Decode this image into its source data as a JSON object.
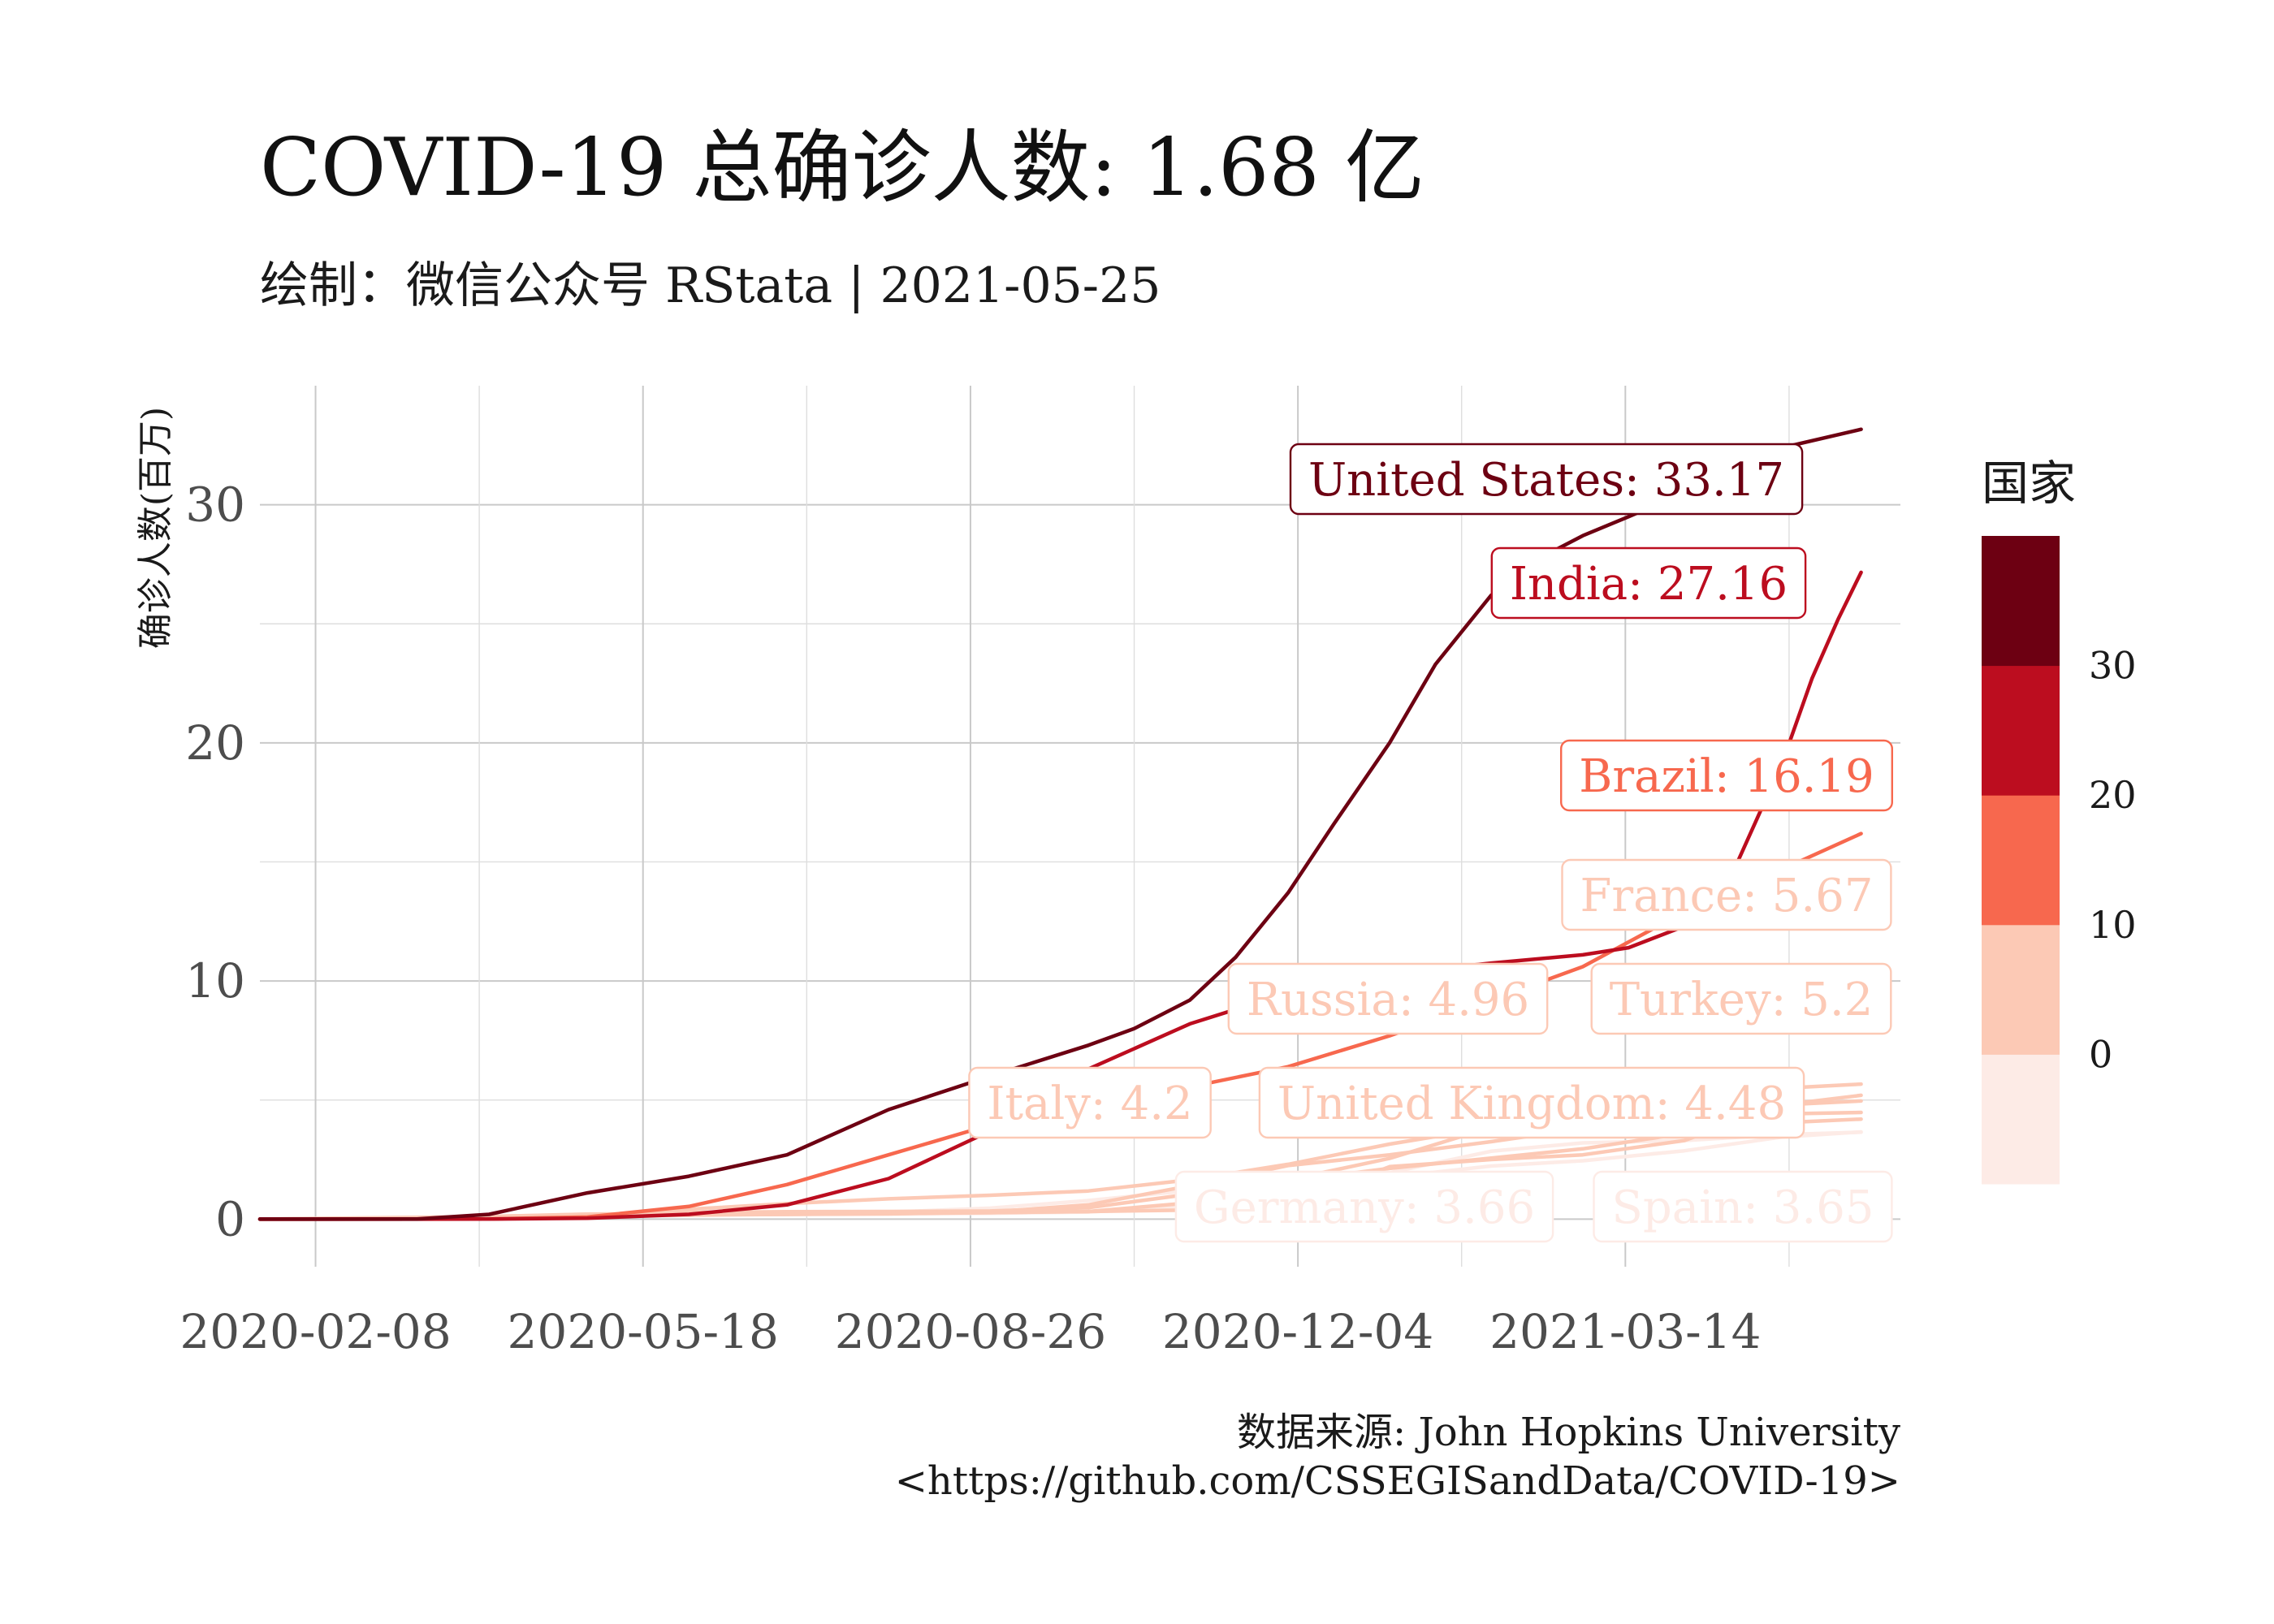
{
  "chart_data": {
    "type": "line",
    "title": "COVID-19 总确诊人数: 1.68 亿",
    "subtitle": "绘制：微信公众号 RStata | 2021-05-25",
    "xlabel": "",
    "ylabel": "确诊人数(百万)",
    "caption_lines": [
      "数据来源: John Hopkins University",
      "<https://github.com/CSSEGISandData/COVID-19>"
    ],
    "xlim": [
      "2020-01-22",
      "2021-06-06"
    ],
    "ylim": [
      -2,
      35
    ],
    "x_ticks": [
      "2020-02-08",
      "2020-05-18",
      "2020-08-26",
      "2020-12-04",
      "2021-03-14"
    ],
    "y_ticks": [
      0,
      10,
      20,
      30
    ],
    "grid": true,
    "legend": {
      "title": "国家",
      "position": "right",
      "ticks": [
        0,
        10,
        20,
        30
      ],
      "colors": [
        "#fdebe6",
        "#fcc9b5",
        "#f7684e",
        "#bc0d1f",
        "#6d0012"
      ]
    },
    "series": [
      {
        "name": "United States",
        "label": "United States: 33.17",
        "color": "#6d0012",
        "points": [
          [
            "2020-01-22",
            0
          ],
          [
            "2020-03-10",
            0.001
          ],
          [
            "2020-04-01",
            0.2
          ],
          [
            "2020-05-01",
            1.1
          ],
          [
            "2020-06-01",
            1.8
          ],
          [
            "2020-07-01",
            2.7
          ],
          [
            "2020-08-01",
            4.6
          ],
          [
            "2020-09-01",
            6.0
          ],
          [
            "2020-10-01",
            7.3
          ],
          [
            "2020-10-15",
            8.0
          ],
          [
            "2020-11-01",
            9.2
          ],
          [
            "2020-11-15",
            11.0
          ],
          [
            "2020-12-01",
            13.7
          ],
          [
            "2020-12-15",
            16.6
          ],
          [
            "2021-01-01",
            20.0
          ],
          [
            "2021-01-15",
            23.3
          ],
          [
            "2021-02-01",
            26.2
          ],
          [
            "2021-02-15",
            27.7
          ],
          [
            "2021-03-01",
            28.7
          ],
          [
            "2021-03-15",
            29.5
          ],
          [
            "2021-04-01",
            30.5
          ],
          [
            "2021-04-15",
            31.3
          ],
          [
            "2021-05-01",
            32.4
          ],
          [
            "2021-05-25",
            33.17
          ]
        ]
      },
      {
        "name": "India",
        "label": "India: 27.16",
        "color": "#bc0d1f",
        "points": [
          [
            "2020-01-22",
            0
          ],
          [
            "2020-04-01",
            0.002
          ],
          [
            "2020-05-01",
            0.035
          ],
          [
            "2020-06-01",
            0.2
          ],
          [
            "2020-07-01",
            0.6
          ],
          [
            "2020-08-01",
            1.7
          ],
          [
            "2020-09-01",
            3.7
          ],
          [
            "2020-10-01",
            6.3
          ],
          [
            "2020-11-01",
            8.2
          ],
          [
            "2020-12-01",
            9.5
          ],
          [
            "2021-01-01",
            10.3
          ],
          [
            "2021-02-01",
            10.75
          ],
          [
            "2021-03-01",
            11.1
          ],
          [
            "2021-03-15",
            11.4
          ],
          [
            "2021-04-01",
            12.3
          ],
          [
            "2021-04-15",
            14.3
          ],
          [
            "2021-05-01",
            19.2
          ],
          [
            "2021-05-10",
            22.7
          ],
          [
            "2021-05-18",
            25.2
          ],
          [
            "2021-05-25",
            27.16
          ]
        ]
      },
      {
        "name": "Brazil",
        "label": "Brazil: 16.19",
        "color": "#f7684e",
        "points": [
          [
            "2020-01-22",
            0
          ],
          [
            "2020-04-01",
            0.006
          ],
          [
            "2020-05-01",
            0.09
          ],
          [
            "2020-06-01",
            0.53
          ],
          [
            "2020-07-01",
            1.45
          ],
          [
            "2020-08-01",
            2.7
          ],
          [
            "2020-09-01",
            3.95
          ],
          [
            "2020-10-01",
            4.8
          ],
          [
            "2020-11-01",
            5.55
          ],
          [
            "2020-12-01",
            6.4
          ],
          [
            "2021-01-01",
            7.7
          ],
          [
            "2021-02-01",
            9.2
          ],
          [
            "2021-03-01",
            10.6
          ],
          [
            "2021-04-01",
            12.9
          ],
          [
            "2021-05-01",
            14.7
          ],
          [
            "2021-05-25",
            16.19
          ]
        ]
      },
      {
        "name": "France",
        "label": "France: 5.67",
        "color": "#fcc9b5",
        "points": [
          [
            "2020-01-22",
            0
          ],
          [
            "2020-04-01",
            0.055
          ],
          [
            "2020-05-01",
            0.17
          ],
          [
            "2020-06-01",
            0.19
          ],
          [
            "2020-07-01",
            0.2
          ],
          [
            "2020-08-01",
            0.22
          ],
          [
            "2020-09-01",
            0.3
          ],
          [
            "2020-10-01",
            0.6
          ],
          [
            "2020-11-01",
            1.4
          ],
          [
            "2020-12-01",
            2.25
          ],
          [
            "2021-01-01",
            2.7
          ],
          [
            "2021-02-01",
            3.25
          ],
          [
            "2021-03-01",
            3.8
          ],
          [
            "2021-04-01",
            4.7
          ],
          [
            "2021-05-01",
            5.5
          ],
          [
            "2021-05-25",
            5.67
          ]
        ]
      },
      {
        "name": "Turkey",
        "label": "Turkey: 5.2",
        "color": "#fcc9b5",
        "points": [
          [
            "2020-01-22",
            0
          ],
          [
            "2020-04-01",
            0.016
          ],
          [
            "2020-05-01",
            0.12
          ],
          [
            "2020-06-01",
            0.165
          ],
          [
            "2020-07-01",
            0.2
          ],
          [
            "2020-08-01",
            0.23
          ],
          [
            "2020-09-01",
            0.27
          ],
          [
            "2020-10-01",
            0.32
          ],
          [
            "2020-11-01",
            0.38
          ],
          [
            "2020-12-01",
            0.6
          ],
          [
            "2021-01-01",
            2.2
          ],
          [
            "2021-02-01",
            2.5
          ],
          [
            "2021-03-01",
            2.7
          ],
          [
            "2021-04-01",
            3.3
          ],
          [
            "2021-05-01",
            4.8
          ],
          [
            "2021-05-25",
            5.2
          ]
        ]
      },
      {
        "name": "Russia",
        "label": "Russia: 4.96",
        "color": "#fcc9b5",
        "points": [
          [
            "2020-01-22",
            0
          ],
          [
            "2020-04-01",
            0.003
          ],
          [
            "2020-05-01",
            0.11
          ],
          [
            "2020-06-01",
            0.41
          ],
          [
            "2020-07-01",
            0.65
          ],
          [
            "2020-08-01",
            0.85
          ],
          [
            "2020-09-01",
            1.0
          ],
          [
            "2020-10-01",
            1.18
          ],
          [
            "2020-11-01",
            1.65
          ],
          [
            "2020-12-01",
            2.3
          ],
          [
            "2021-01-01",
            3.15
          ],
          [
            "2021-02-01",
            3.85
          ],
          [
            "2021-03-01",
            4.28
          ],
          [
            "2021-04-01",
            4.55
          ],
          [
            "2021-05-01",
            4.8
          ],
          [
            "2021-05-25",
            4.96
          ]
        ]
      },
      {
        "name": "United Kingdom",
        "label": "United Kingdom: 4.48",
        "color": "#fcc9b5",
        "points": [
          [
            "2020-01-22",
            0
          ],
          [
            "2020-04-01",
            0.03
          ],
          [
            "2020-05-01",
            0.18
          ],
          [
            "2020-06-01",
            0.28
          ],
          [
            "2020-07-01",
            0.31
          ],
          [
            "2020-08-01",
            0.32
          ],
          [
            "2020-09-01",
            0.34
          ],
          [
            "2020-10-01",
            0.48
          ],
          [
            "2020-11-01",
            1.05
          ],
          [
            "2020-12-01",
            1.65
          ],
          [
            "2021-01-01",
            2.55
          ],
          [
            "2021-02-01",
            3.85
          ],
          [
            "2021-03-01",
            4.2
          ],
          [
            "2021-04-01",
            4.35
          ],
          [
            "2021-05-01",
            4.42
          ],
          [
            "2021-05-25",
            4.48
          ]
        ]
      },
      {
        "name": "Italy",
        "label": "Italy: 4.2",
        "color": "#fcc9b5",
        "points": [
          [
            "2020-01-22",
            0
          ],
          [
            "2020-04-01",
            0.11
          ],
          [
            "2020-05-01",
            0.21
          ],
          [
            "2020-06-01",
            0.23
          ],
          [
            "2020-07-01",
            0.24
          ],
          [
            "2020-08-01",
            0.25
          ],
          [
            "2020-09-01",
            0.27
          ],
          [
            "2020-10-01",
            0.32
          ],
          [
            "2020-11-01",
            0.68
          ],
          [
            "2020-12-01",
            1.6
          ],
          [
            "2021-01-01",
            2.13
          ],
          [
            "2021-02-01",
            2.56
          ],
          [
            "2021-03-01",
            2.95
          ],
          [
            "2021-04-01",
            3.6
          ],
          [
            "2021-05-01",
            4.05
          ],
          [
            "2021-05-25",
            4.2
          ]
        ]
      },
      {
        "name": "Germany",
        "label": "Germany: 3.66",
        "color": "#fdebe6",
        "points": [
          [
            "2020-01-22",
            0
          ],
          [
            "2020-04-01",
            0.075
          ],
          [
            "2020-05-01",
            0.165
          ],
          [
            "2020-06-01",
            0.185
          ],
          [
            "2020-07-01",
            0.195
          ],
          [
            "2020-08-01",
            0.21
          ],
          [
            "2020-09-01",
            0.245
          ],
          [
            "2020-10-01",
            0.3
          ],
          [
            "2020-11-01",
            0.55
          ],
          [
            "2020-12-01",
            1.07
          ],
          [
            "2021-01-01",
            1.76
          ],
          [
            "2021-02-01",
            2.23
          ],
          [
            "2021-03-01",
            2.45
          ],
          [
            "2021-04-01",
            2.87
          ],
          [
            "2021-05-01",
            3.45
          ],
          [
            "2021-05-25",
            3.66
          ]
        ]
      },
      {
        "name": "Spain",
        "label": "Spain: 3.65",
        "color": "#fdebe6",
        "points": [
          [
            "2020-01-22",
            0
          ],
          [
            "2020-04-01",
            0.1
          ],
          [
            "2020-05-01",
            0.21
          ],
          [
            "2020-06-01",
            0.24
          ],
          [
            "2020-07-01",
            0.25
          ],
          [
            "2020-08-01",
            0.29
          ],
          [
            "2020-09-01",
            0.46
          ],
          [
            "2020-10-01",
            0.78
          ],
          [
            "2020-11-01",
            1.2
          ],
          [
            "2020-12-01",
            1.65
          ],
          [
            "2021-01-01",
            1.95
          ],
          [
            "2021-02-01",
            2.85
          ],
          [
            "2021-03-01",
            3.2
          ],
          [
            "2021-04-01",
            3.3
          ],
          [
            "2021-05-01",
            3.55
          ],
          [
            "2021-05-25",
            3.65
          ]
        ]
      }
    ]
  }
}
